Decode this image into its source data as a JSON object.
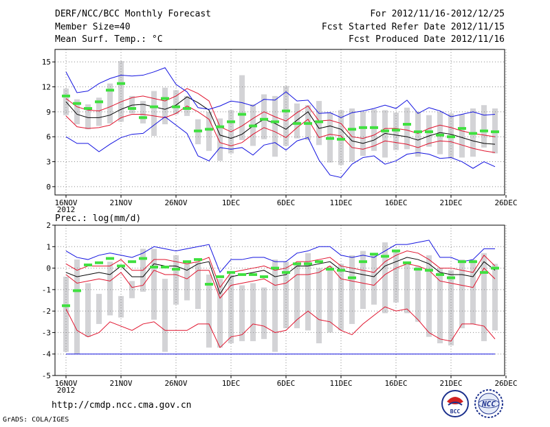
{
  "header": {
    "title": "DERF/NCC/BCC Monthly Forecast",
    "member_size": "Member Size=40",
    "variable": "Mean Surf. Temp.: °C",
    "period": "For 2012/11/16-2012/12/25",
    "refer_date": "Fcst Started Refer Date 2012/11/15",
    "produced_date": "Fcst Produced Date 2012/11/16"
  },
  "footer": {
    "url": "http://cmdp.ncc.cma.gov.cn",
    "credit": "GrADS: COLA/IGES",
    "logo_left": "BCC",
    "logo_right": "NCC"
  },
  "colors": {
    "box": "#d3d3d6",
    "green": "#3fe03f",
    "red": "#e0102a",
    "blue": "#1010e0",
    "black": "#000000",
    "grid": "#888888"
  },
  "chart_data": [
    {
      "type": "line",
      "title": "Mean Surf. Temp.: °C",
      "x_ticks": [
        "16NOV",
        "21NOV",
        "26NOV",
        "1DEC",
        "6DEC",
        "11DEC",
        "16DEC",
        "21DEC",
        "26DEC"
      ],
      "x_year_label": "2012",
      "ylim": [
        -1,
        16.5
      ],
      "yticks": [
        0,
        3,
        6,
        9,
        12,
        15
      ],
      "ytick_labels": [
        "0",
        "3",
        "6",
        "9",
        "12",
        "15"
      ],
      "days": 40,
      "series": [
        {
          "name": "ensemble mean",
          "color": "black",
          "values": [
            10.2,
            8.7,
            8.3,
            8.3,
            8.6,
            9.3,
            9.8,
            9.9,
            9.6,
            9.3,
            9.8,
            10.8,
            10.1,
            9.2,
            6.2,
            5.8,
            6.3,
            7.3,
            8.1,
            7.6,
            6.9,
            8.0,
            9.0,
            7.0,
            7.3,
            6.9,
            5.5,
            5.2,
            5.6,
            6.4,
            6.2,
            6.0,
            5.6,
            6.1,
            6.5,
            6.3,
            5.9,
            5.5,
            5.2,
            5.1
          ]
        },
        {
          "name": "upper red",
          "color": "red",
          "values": [
            10.6,
            9.6,
            9.2,
            9.1,
            9.6,
            10.2,
            10.7,
            10.9,
            10.6,
            10.3,
            10.9,
            11.8,
            11.2,
            10.3,
            7.2,
            6.6,
            7.3,
            8.2,
            9.0,
            8.4,
            7.9,
            8.9,
            9.7,
            7.9,
            8.0,
            7.6,
            6.0,
            5.8,
            6.2,
            7.0,
            7.0,
            6.8,
            6.4,
            7.0,
            7.4,
            7.1,
            6.7,
            6.4,
            6.2,
            6.0
          ]
        },
        {
          "name": "lower red",
          "color": "red",
          "values": [
            8.5,
            7.2,
            7.0,
            7.1,
            7.4,
            8.3,
            8.7,
            8.7,
            8.5,
            8.3,
            8.8,
            9.7,
            9.0,
            8.1,
            5.3,
            4.9,
            5.3,
            6.3,
            7.1,
            6.6,
            5.9,
            7.1,
            8.1,
            5.9,
            6.3,
            6.1,
            4.7,
            4.5,
            4.9,
            5.5,
            5.3,
            5.1,
            4.7,
            5.2,
            5.5,
            5.4,
            5.0,
            4.6,
            4.3,
            4.1
          ]
        },
        {
          "name": "max (blue)",
          "color": "blue",
          "values": [
            13.8,
            11.3,
            11.5,
            12.4,
            13.0,
            13.4,
            13.3,
            13.4,
            13.8,
            14.3,
            12.3,
            11.4,
            9.5,
            9.3,
            9.7,
            10.3,
            10.1,
            9.7,
            10.5,
            10.4,
            11.4,
            10.3,
            10.4,
            8.8,
            8.9,
            8.3,
            8.9,
            9.1,
            9.4,
            9.8,
            9.4,
            10.4,
            8.8,
            9.5,
            9.1,
            8.4,
            8.7,
            9.0,
            8.6,
            8.7
          ]
        },
        {
          "name": "min (blue)",
          "color": "blue",
          "values": [
            6.0,
            5.2,
            5.2,
            4.2,
            5.1,
            5.9,
            6.3,
            6.4,
            7.4,
            8.4,
            7.4,
            6.4,
            3.7,
            3.1,
            4.7,
            4.5,
            4.7,
            3.8,
            5.0,
            5.3,
            4.4,
            5.5,
            5.9,
            3.2,
            1.4,
            1.1,
            2.7,
            3.5,
            3.7,
            2.7,
            3.1,
            3.9,
            4.1,
            3.9,
            3.4,
            3.5,
            3.0,
            2.2,
            3.0,
            2.4
          ]
        }
      ],
      "markers": [
        10.9,
        10.0,
        9.4,
        10.2,
        11.6,
        12.4,
        9.4,
        8.3,
        9.6,
        10.6,
        9.6,
        9.4,
        6.7,
        6.9,
        7.2,
        7.8,
        8.7,
        7.3,
        8.1,
        7.8,
        9.1,
        7.6,
        7.6,
        7.8,
        5.8,
        5.7,
        6.9,
        7.1,
        7.1,
        6.7,
        6.8,
        7.5,
        6.6,
        6.6,
        6.2,
        6.0,
        7.0,
        6.4,
        6.7,
        6.6
      ],
      "box_low": [
        8.6,
        7.5,
        6.9,
        7.3,
        7.6,
        7.8,
        8.8,
        7.6,
        6.1,
        7.5,
        8.7,
        8.5,
        5.1,
        4.3,
        3.1,
        4.0,
        5.6,
        4.9,
        5.7,
        3.6,
        4.9,
        5.8,
        5.6,
        5.0,
        2.9,
        2.6,
        3.0,
        3.7,
        4.3,
        3.5,
        4.4,
        4.5,
        3.6,
        4.8,
        3.9,
        3.4,
        3.5,
        3.6,
        4.7,
        4.0
      ],
      "box_high": [
        11.8,
        10.5,
        9.9,
        10.7,
        12.4,
        15.1,
        10.9,
        10.3,
        11.5,
        11.9,
        11.6,
        10.9,
        8.1,
        9.0,
        8.2,
        9.2,
        13.4,
        9.9,
        11.1,
        10.9,
        12.1,
        10.0,
        9.8,
        10.3,
        8.9,
        9.2,
        9.4,
        9.0,
        9.3,
        9.2,
        8.9,
        9.5,
        9.0,
        8.6,
        9.0,
        8.8,
        8.7,
        9.4,
        9.8,
        9.4
      ]
    },
    {
      "type": "line",
      "title": "Prec.: log(mm/d)",
      "x_ticks": [
        "16NOV",
        "21NOV",
        "26NOV",
        "1DEC",
        "6DEC",
        "11DEC",
        "16DEC",
        "21DEC",
        "26DEC"
      ],
      "x_year_label": "2012",
      "ylim": [
        -5,
        2
      ],
      "yticks": [
        -5,
        -4,
        -3,
        -2,
        -1,
        0,
        1,
        2
      ],
      "ytick_labels": [
        "-5",
        "-4",
        "-3",
        "-2",
        "-1",
        "0",
        "1",
        "2"
      ],
      "days": 40,
      "series": [
        {
          "name": "ensemble mean",
          "color": "black",
          "values": [
            -0.2,
            -0.4,
            -0.3,
            -0.2,
            -0.3,
            0.1,
            -0.4,
            -0.4,
            0.2,
            0.1,
            0.1,
            -0.1,
            0.2,
            0.3,
            -1.2,
            -0.4,
            -0.3,
            -0.2,
            -0.1,
            -0.4,
            -0.3,
            0.1,
            0.1,
            0.2,
            0.3,
            -0.1,
            -0.2,
            -0.3,
            -0.4,
            0.1,
            0.3,
            0.5,
            0.4,
            0.2,
            -0.2,
            -0.3,
            -0.3,
            -0.4,
            0.3,
            -0.1
          ]
        },
        {
          "name": "upper red",
          "color": "red",
          "values": [
            0.2,
            -0.1,
            0.1,
            0.1,
            0.1,
            0.4,
            -0.1,
            -0.1,
            0.4,
            0.4,
            0.3,
            0.2,
            0.3,
            0.5,
            -0.9,
            -0.2,
            -0.1,
            0.0,
            0.1,
            -0.1,
            0.0,
            0.3,
            0.3,
            0.4,
            0.5,
            0.1,
            0.0,
            -0.1,
            -0.2,
            0.3,
            0.6,
            0.8,
            0.7,
            0.4,
            0.0,
            0.0,
            -0.1,
            -0.2,
            0.6,
            0.1
          ]
        },
        {
          "name": "lower red",
          "color": "red",
          "values": [
            -0.3,
            -0.7,
            -0.6,
            -0.5,
            -0.6,
            -0.2,
            -0.9,
            -0.8,
            -0.1,
            -0.3,
            -0.3,
            -0.5,
            -0.1,
            -0.1,
            -1.4,
            -0.8,
            -0.7,
            -0.6,
            -0.5,
            -0.8,
            -0.7,
            -0.3,
            -0.3,
            -0.2,
            0.1,
            -0.5,
            -0.6,
            -0.7,
            -0.8,
            -0.3,
            0.0,
            0.2,
            0.1,
            -0.1,
            -0.6,
            -0.7,
            -0.8,
            -0.9,
            0.0,
            -0.5
          ]
        },
        {
          "name": "lower red 2",
          "color": "red",
          "values": [
            -1.9,
            -2.9,
            -3.2,
            -3.0,
            -2.5,
            -2.7,
            -2.9,
            -2.6,
            -2.5,
            -2.9,
            -2.9,
            -2.9,
            -2.6,
            -2.6,
            -3.7,
            -3.2,
            -3.1,
            -2.6,
            -2.7,
            -3.0,
            -2.9,
            -2.4,
            -2.0,
            -2.4,
            -2.5,
            -2.9,
            -3.1,
            -2.6,
            -2.2,
            -1.8,
            -2.0,
            -1.9,
            -2.4,
            -3.0,
            -3.3,
            -3.4,
            -2.6,
            -2.6,
            -2.7,
            -3.3
          ]
        },
        {
          "name": "max (blue)",
          "color": "blue",
          "values": [
            0.8,
            0.5,
            0.4,
            0.6,
            0.7,
            0.6,
            0.5,
            0.7,
            1.0,
            0.9,
            0.8,
            0.9,
            1.0,
            1.1,
            -0.2,
            0.4,
            0.4,
            0.5,
            0.5,
            0.3,
            0.3,
            0.7,
            0.8,
            1.0,
            1.0,
            0.6,
            0.5,
            0.6,
            0.5,
            0.8,
            1.1,
            1.1,
            1.2,
            1.3,
            0.5,
            0.5,
            0.3,
            0.4,
            0.9,
            0.9
          ]
        },
        {
          "name": "min (blue)",
          "color": "blue",
          "values": [
            -4,
            -4,
            -4,
            -4,
            -4,
            -4,
            -4,
            -4,
            -4,
            -4,
            -4,
            -4,
            -4,
            -4,
            -4,
            -4,
            -4,
            -4,
            -4,
            -4,
            -4,
            -4,
            -4,
            -4,
            -4,
            -4,
            -4,
            -4,
            -4,
            -4,
            -4,
            -4,
            -4,
            -4,
            -4,
            -4,
            -4,
            -4,
            -4,
            -4
          ]
        }
      ],
      "markers": [
        -1.75,
        -1.05,
        0.15,
        0.25,
        0.45,
        0.1,
        0.3,
        0.45,
        0.05,
        0.05,
        -0.05,
        0.3,
        0.4,
        -0.75,
        -0.4,
        -0.2,
        -0.3,
        -0.3,
        -0.4,
        0.0,
        -0.2,
        0.2,
        0.2,
        0.3,
        -0.05,
        -0.1,
        -0.45,
        0.3,
        0.65,
        0.55,
        0.8,
        0.25,
        -0.05,
        -0.1,
        -0.3,
        -0.45,
        0.3,
        0.3,
        -0.2,
        0.0
      ],
      "box_low": [
        -3.9,
        -4.0,
        -3.2,
        -2.6,
        -2.2,
        -2.3,
        -1.4,
        -1.1,
        -2.4,
        -3.9,
        -1.7,
        -1.5,
        -1.9,
        -3.7,
        -3.7,
        -3.5,
        -3.4,
        -3.4,
        -3.3,
        -3.9,
        -2.8,
        -2.8,
        -2.9,
        -3.5,
        -3.0,
        -2.9,
        -2.6,
        -1.9,
        -1.7,
        -2.1,
        -1.6,
        -2.1,
        -2.5,
        -3.2,
        -3.5,
        -3.6,
        -2.8,
        -2.6,
        -3.4,
        -2.9
      ],
      "box_high": [
        -0.4,
        0.4,
        -0.7,
        -1.2,
        0.3,
        -1.3,
        -0.6,
        0.9,
        0.9,
        -0.5,
        0.6,
        0.2,
        0.3,
        -0.3,
        -0.5,
        -0.3,
        -0.8,
        -0.7,
        -0.9,
        0.4,
        0.3,
        0.2,
        0.7,
        0.0,
        0.1,
        0.2,
        0.6,
        0.8,
        0.7,
        1.2,
        0.8,
        0.3,
        0.1,
        0.6,
        0.0,
        -0.1,
        0.4,
        0.4,
        0.7,
        0.2
      ]
    }
  ]
}
